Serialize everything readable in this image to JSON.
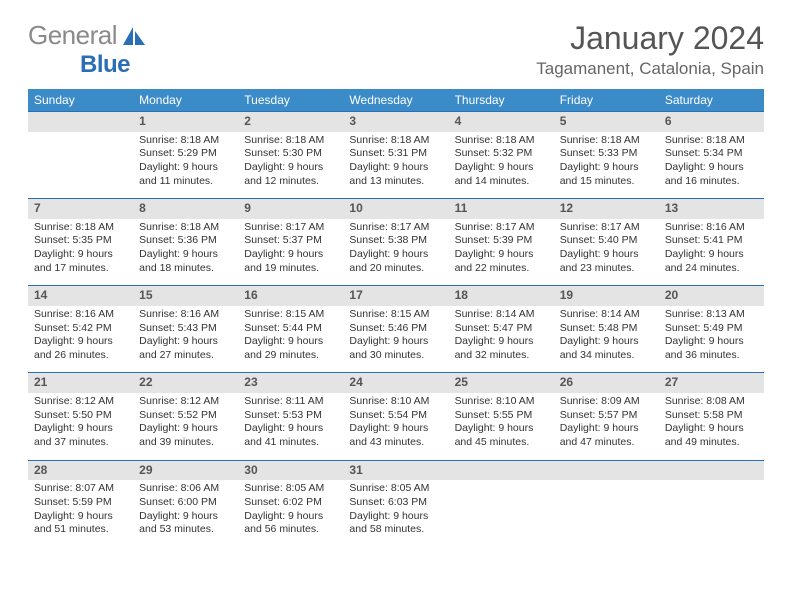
{
  "logo": {
    "text1": "General",
    "text2": "Blue"
  },
  "title": "January 2024",
  "location": "Tagamanent, Catalonia, Spain",
  "colors": {
    "header_bg": "#3b8bc9",
    "header_text": "#ffffff",
    "daynum_bg": "#e4e4e4",
    "daynum_border": "#2a6fb5",
    "body_text": "#333333",
    "logo_gray": "#8a8a8a",
    "logo_blue": "#2a6fb5"
  },
  "weekdays": [
    "Sunday",
    "Monday",
    "Tuesday",
    "Wednesday",
    "Thursday",
    "Friday",
    "Saturday"
  ],
  "weeks": [
    [
      null,
      {
        "n": "1",
        "sr": "8:18 AM",
        "ss": "5:29 PM",
        "dl": "9 hours and 11 minutes."
      },
      {
        "n": "2",
        "sr": "8:18 AM",
        "ss": "5:30 PM",
        "dl": "9 hours and 12 minutes."
      },
      {
        "n": "3",
        "sr": "8:18 AM",
        "ss": "5:31 PM",
        "dl": "9 hours and 13 minutes."
      },
      {
        "n": "4",
        "sr": "8:18 AM",
        "ss": "5:32 PM",
        "dl": "9 hours and 14 minutes."
      },
      {
        "n": "5",
        "sr": "8:18 AM",
        "ss": "5:33 PM",
        "dl": "9 hours and 15 minutes."
      },
      {
        "n": "6",
        "sr": "8:18 AM",
        "ss": "5:34 PM",
        "dl": "9 hours and 16 minutes."
      }
    ],
    [
      {
        "n": "7",
        "sr": "8:18 AM",
        "ss": "5:35 PM",
        "dl": "9 hours and 17 minutes."
      },
      {
        "n": "8",
        "sr": "8:18 AM",
        "ss": "5:36 PM",
        "dl": "9 hours and 18 minutes."
      },
      {
        "n": "9",
        "sr": "8:17 AM",
        "ss": "5:37 PM",
        "dl": "9 hours and 19 minutes."
      },
      {
        "n": "10",
        "sr": "8:17 AM",
        "ss": "5:38 PM",
        "dl": "9 hours and 20 minutes."
      },
      {
        "n": "11",
        "sr": "8:17 AM",
        "ss": "5:39 PM",
        "dl": "9 hours and 22 minutes."
      },
      {
        "n": "12",
        "sr": "8:17 AM",
        "ss": "5:40 PM",
        "dl": "9 hours and 23 minutes."
      },
      {
        "n": "13",
        "sr": "8:16 AM",
        "ss": "5:41 PM",
        "dl": "9 hours and 24 minutes."
      }
    ],
    [
      {
        "n": "14",
        "sr": "8:16 AM",
        "ss": "5:42 PM",
        "dl": "9 hours and 26 minutes."
      },
      {
        "n": "15",
        "sr": "8:16 AM",
        "ss": "5:43 PM",
        "dl": "9 hours and 27 minutes."
      },
      {
        "n": "16",
        "sr": "8:15 AM",
        "ss": "5:44 PM",
        "dl": "9 hours and 29 minutes."
      },
      {
        "n": "17",
        "sr": "8:15 AM",
        "ss": "5:46 PM",
        "dl": "9 hours and 30 minutes."
      },
      {
        "n": "18",
        "sr": "8:14 AM",
        "ss": "5:47 PM",
        "dl": "9 hours and 32 minutes."
      },
      {
        "n": "19",
        "sr": "8:14 AM",
        "ss": "5:48 PM",
        "dl": "9 hours and 34 minutes."
      },
      {
        "n": "20",
        "sr": "8:13 AM",
        "ss": "5:49 PM",
        "dl": "9 hours and 36 minutes."
      }
    ],
    [
      {
        "n": "21",
        "sr": "8:12 AM",
        "ss": "5:50 PM",
        "dl": "9 hours and 37 minutes."
      },
      {
        "n": "22",
        "sr": "8:12 AM",
        "ss": "5:52 PM",
        "dl": "9 hours and 39 minutes."
      },
      {
        "n": "23",
        "sr": "8:11 AM",
        "ss": "5:53 PM",
        "dl": "9 hours and 41 minutes."
      },
      {
        "n": "24",
        "sr": "8:10 AM",
        "ss": "5:54 PM",
        "dl": "9 hours and 43 minutes."
      },
      {
        "n": "25",
        "sr": "8:10 AM",
        "ss": "5:55 PM",
        "dl": "9 hours and 45 minutes."
      },
      {
        "n": "26",
        "sr": "8:09 AM",
        "ss": "5:57 PM",
        "dl": "9 hours and 47 minutes."
      },
      {
        "n": "27",
        "sr": "8:08 AM",
        "ss": "5:58 PM",
        "dl": "9 hours and 49 minutes."
      }
    ],
    [
      {
        "n": "28",
        "sr": "8:07 AM",
        "ss": "5:59 PM",
        "dl": "9 hours and 51 minutes."
      },
      {
        "n": "29",
        "sr": "8:06 AM",
        "ss": "6:00 PM",
        "dl": "9 hours and 53 minutes."
      },
      {
        "n": "30",
        "sr": "8:05 AM",
        "ss": "6:02 PM",
        "dl": "9 hours and 56 minutes."
      },
      {
        "n": "31",
        "sr": "8:05 AM",
        "ss": "6:03 PM",
        "dl": "9 hours and 58 minutes."
      },
      null,
      null,
      null
    ]
  ],
  "labels": {
    "sunrise": "Sunrise:",
    "sunset": "Sunset:",
    "daylight": "Daylight:"
  }
}
